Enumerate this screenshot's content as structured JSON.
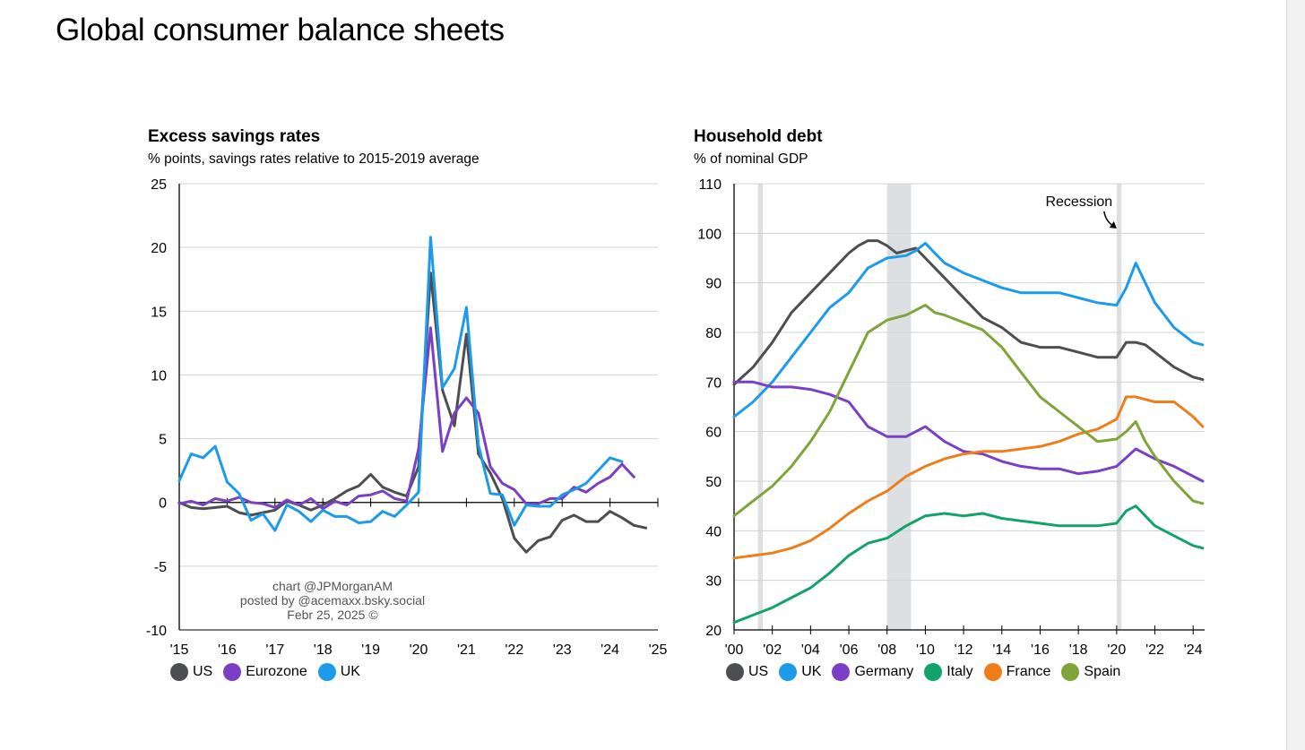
{
  "page": {
    "title": "Global consumer balance sheets"
  },
  "credit": {
    "line1": "chart @JPMorganAM",
    "line2": "posted by @acemaxx.bsky.social",
    "line3": "Febr 25, 2025 ©"
  },
  "chart_data": [
    {
      "type": "line",
      "title": "Excess savings rates",
      "subtitle": "% points, savings rates relative to 2015-2019 average",
      "xlim": [
        2015,
        2025
      ],
      "ylim": [
        -10,
        25
      ],
      "yticks": [
        25,
        20,
        15,
        10,
        5,
        0,
        -5,
        -10
      ],
      "xticks": [
        2015,
        2016,
        2017,
        2018,
        2019,
        2020,
        2021,
        2022,
        2023,
        2024,
        2025
      ],
      "xtick_labels": [
        "'15",
        "'16",
        "'17",
        "'18",
        "'19",
        "'20",
        "'21",
        "'22",
        "'23",
        "'24",
        "'25"
      ],
      "grid": true,
      "legend_position": "bottom",
      "series": [
        {
          "name": "US",
          "color": "#4d4e51",
          "x": [
            2015.0,
            2015.25,
            2015.5,
            2015.75,
            2016.0,
            2016.25,
            2016.5,
            2016.75,
            2017.0,
            2017.25,
            2017.5,
            2017.75,
            2018.0,
            2018.25,
            2018.5,
            2018.75,
            2019.0,
            2019.25,
            2019.5,
            2019.75,
            2020.0,
            2020.25,
            2020.5,
            2020.75,
            2021.0,
            2021.25,
            2021.5,
            2021.75,
            2022.0,
            2022.25,
            2022.5,
            2022.75,
            2023.0,
            2023.25,
            2023.5,
            2023.75,
            2024.0,
            2024.25,
            2024.5,
            2024.75
          ],
          "y": [
            0,
            -0.4,
            -0.5,
            -0.4,
            -0.3,
            -0.8,
            -1.0,
            -0.8,
            -0.6,
            0.1,
            -0.2,
            -0.6,
            -0.2,
            0.3,
            0.9,
            1.3,
            2.2,
            1.2,
            0.8,
            0.5,
            2.8,
            18.0,
            8.8,
            6.0,
            13.2,
            3.8,
            2.3,
            0.3,
            -2.8,
            -3.9,
            -3.0,
            -2.7,
            -1.4,
            -1.0,
            -1.5,
            -1.5,
            -0.7,
            -1.2,
            -1.8,
            -2.0
          ]
        },
        {
          "name": "Eurozone",
          "color": "#7a3fc4",
          "x": [
            2015.0,
            2015.25,
            2015.5,
            2015.75,
            2016.0,
            2016.25,
            2016.5,
            2016.75,
            2017.0,
            2017.25,
            2017.5,
            2017.75,
            2018.0,
            2018.25,
            2018.5,
            2018.75,
            2019.0,
            2019.25,
            2019.5,
            2019.75,
            2020.0,
            2020.25,
            2020.5,
            2020.75,
            2021.0,
            2021.25,
            2021.5,
            2021.75,
            2022.0,
            2022.25,
            2022.5,
            2022.75,
            2023.0,
            2023.25,
            2023.5,
            2023.75,
            2024.0,
            2024.25,
            2024.5
          ],
          "y": [
            -0.1,
            0.1,
            -0.2,
            0.3,
            0.1,
            0.4,
            0.0,
            -0.1,
            -0.4,
            0.2,
            -0.2,
            0.3,
            -0.5,
            0.1,
            -0.2,
            0.5,
            0.6,
            0.9,
            0.3,
            0.1,
            4.2,
            13.7,
            4.0,
            7.0,
            8.2,
            7.0,
            2.8,
            1.5,
            1.0,
            -0.1,
            -0.1,
            0.3,
            0.3,
            1.2,
            0.8,
            1.5,
            2.0,
            3.0,
            2.0
          ]
        },
        {
          "name": "UK",
          "color": "#1c9bea",
          "x": [
            2015.0,
            2015.25,
            2015.5,
            2015.75,
            2016.0,
            2016.25,
            2016.5,
            2016.75,
            2017.0,
            2017.25,
            2017.5,
            2017.75,
            2018.0,
            2018.25,
            2018.5,
            2018.75,
            2019.0,
            2019.25,
            2019.5,
            2019.75,
            2020.0,
            2020.25,
            2020.5,
            2020.75,
            2021.0,
            2021.25,
            2021.5,
            2021.75,
            2022.0,
            2022.25,
            2022.5,
            2022.75,
            2023.0,
            2023.25,
            2023.5,
            2023.75,
            2024.0,
            2024.25,
            2024.5
          ],
          "y": [
            1.7,
            3.8,
            3.5,
            4.4,
            1.6,
            0.7,
            -1.4,
            -0.9,
            -2.2,
            -0.2,
            -0.7,
            -1.5,
            -0.6,
            -1.1,
            -1.1,
            -1.6,
            -1.5,
            -0.7,
            -1.1,
            -0.2,
            0.8,
            20.8,
            9.0,
            10.5,
            15.3,
            4.5,
            0.7,
            0.6,
            -1.8,
            -0.2,
            -0.3,
            -0.3,
            0.6,
            1.0,
            1.5,
            2.5,
            3.5,
            3.2,
            null
          ]
        }
      ]
    },
    {
      "type": "line",
      "title": "Household debt",
      "subtitle": "% of nominal GDP",
      "xlim": [
        2000,
        2024.6
      ],
      "ylim": [
        20,
        110
      ],
      "yticks": [
        110,
        100,
        90,
        80,
        70,
        60,
        50,
        40,
        30,
        20
      ],
      "xticks": [
        2000,
        2002,
        2004,
        2006,
        2008,
        2010,
        2012,
        2014,
        2016,
        2018,
        2020,
        2022,
        2024
      ],
      "xtick_labels": [
        "'00",
        "'02",
        "'04",
        "'06",
        "'08",
        "'10",
        "'12",
        "'14",
        "'16",
        "'18",
        "'20",
        "'22",
        "'24"
      ],
      "grid": true,
      "legend_position": "bottom",
      "recession_label": "Recession",
      "recessions": [
        [
          2001.25,
          2001.5
        ],
        [
          2008.0,
          2009.25
        ],
        [
          2020.0,
          2020.25
        ]
      ],
      "series": [
        {
          "name": "US",
          "color": "#4d4e51",
          "x": [
            2000,
            2001,
            2002,
            2003,
            2004,
            2005,
            2006,
            2006.5,
            2007,
            2007.5,
            2008,
            2008.5,
            2009,
            2009.5,
            2010,
            2010.5,
            2011,
            2012,
            2013,
            2014,
            2015,
            2016,
            2017,
            2018,
            2019,
            2020,
            2020.5,
            2021,
            2021.5,
            2022,
            2023,
            2024,
            2024.5
          ],
          "y": [
            69.5,
            73,
            78,
            84,
            88,
            92,
            96,
            97.5,
            98.5,
            98.5,
            97.5,
            96,
            96.5,
            97,
            95,
            93,
            91,
            87,
            83,
            81,
            78,
            77,
            77,
            76,
            75,
            75,
            78,
            78,
            77.5,
            76,
            73,
            71,
            70.5
          ]
        },
        {
          "name": "UK",
          "color": "#1c9bea",
          "x": [
            2000,
            2001,
            2002,
            2003,
            2004,
            2005,
            2006,
            2007,
            2008,
            2009,
            2009.5,
            2010,
            2010.5,
            2011,
            2012,
            2013,
            2014,
            2015,
            2016,
            2017,
            2018,
            2019,
            2020,
            2020.5,
            2021,
            2021.5,
            2022,
            2023,
            2024,
            2024.5
          ],
          "y": [
            63,
            66,
            70,
            75,
            80,
            85,
            88,
            93,
            95,
            95.5,
            96.5,
            98,
            96,
            94,
            92,
            90.5,
            89,
            88,
            88,
            88,
            87,
            86,
            85.5,
            89,
            94,
            90,
            86,
            81,
            78,
            77.5
          ]
        },
        {
          "name": "Germany",
          "color": "#7a3fc4",
          "x": [
            2000,
            2001,
            2002,
            2003,
            2004,
            2005,
            2006,
            2007,
            2008,
            2009,
            2010,
            2011,
            2012,
            2013,
            2014,
            2015,
            2016,
            2017,
            2018,
            2019,
            2020,
            2021,
            2022,
            2023,
            2024,
            2024.5
          ],
          "y": [
            70,
            70,
            69,
            69,
            68.5,
            67.5,
            66,
            61,
            59,
            59,
            61,
            58,
            56,
            55.5,
            54,
            53,
            52.5,
            52.5,
            51.5,
            52,
            53,
            56.5,
            54.5,
            53,
            51,
            50
          ]
        },
        {
          "name": "Italy",
          "color": "#13a36a",
          "x": [
            2000,
            2001,
            2002,
            2003,
            2004,
            2005,
            2006,
            2007,
            2008,
            2009,
            2010,
            2011,
            2012,
            2013,
            2014,
            2015,
            2016,
            2017,
            2018,
            2019,
            2020,
            2020.5,
            2021,
            2021.5,
            2022,
            2023,
            2024,
            2024.5
          ],
          "y": [
            21.5,
            23,
            24.5,
            26.5,
            28.5,
            31.5,
            35,
            37.5,
            38.5,
            41,
            43,
            43.5,
            43,
            43.5,
            42.5,
            42,
            41.5,
            41,
            41,
            41,
            41.5,
            44,
            45,
            43,
            41,
            39,
            37,
            36.5
          ]
        },
        {
          "name": "France",
          "color": "#ee7d1a",
          "x": [
            2000,
            2001,
            2002,
            2003,
            2004,
            2005,
            2006,
            2007,
            2008,
            2009,
            2010,
            2011,
            2012,
            2013,
            2014,
            2015,
            2016,
            2017,
            2018,
            2019,
            2020,
            2020.5,
            2021,
            2021.5,
            2022,
            2023,
            2024,
            2024.5
          ],
          "y": [
            34.5,
            35,
            35.5,
            36.5,
            38,
            40.5,
            43.5,
            46,
            48,
            51,
            53,
            54.5,
            55.5,
            56,
            56,
            56.5,
            57,
            58,
            59.5,
            60.5,
            62.5,
            67,
            67,
            66.5,
            66,
            66,
            63,
            61
          ]
        },
        {
          "name": "Spain",
          "color": "#7ea43a",
          "x": [
            2000,
            2001,
            2002,
            2003,
            2004,
            2005,
            2006,
            2007,
            2008,
            2009,
            2010,
            2010.5,
            2011,
            2012,
            2013,
            2014,
            2015,
            2016,
            2017,
            2018,
            2019,
            2020,
            2020.5,
            2021,
            2021.5,
            2022,
            2023,
            2024,
            2024.5
          ],
          "y": [
            43,
            46,
            49,
            53,
            58,
            64,
            72,
            80,
            82.5,
            83.5,
            85.5,
            84,
            83.5,
            82,
            80.5,
            77,
            72,
            67,
            64,
            61,
            58,
            58.5,
            60,
            62,
            58,
            55,
            50,
            46,
            45.5
          ]
        }
      ]
    }
  ]
}
